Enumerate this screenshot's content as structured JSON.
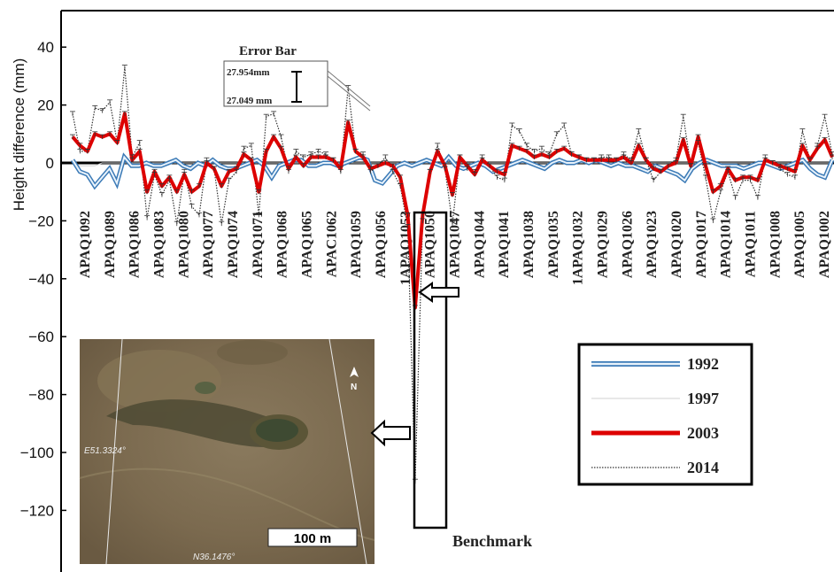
{
  "chart_data": {
    "type": "line",
    "ylabel": "Height difference (mm)",
    "xlabel": "",
    "ylim": [
      -130,
      46
    ],
    "yticks": [
      40,
      20,
      0,
      -20,
      -40,
      -60,
      -80,
      -100,
      -120
    ],
    "x_labels": [
      "APAQ1092",
      "APAQ1089",
      "APAQ1086",
      "APAQ1083",
      "APAQ1080",
      "APAQ1077",
      "APAQ1074",
      "APAQ1071",
      "APAQ1068",
      "APAQ1065",
      "APAC1062",
      "APAQ1059",
      "APAQ1056",
      "1APAQ1053",
      "APAQ1050",
      "APAQ1047",
      "APAQ1044",
      "APAQ1041",
      "APAQ1038",
      "APAQ1035",
      "1APAQ1032",
      "APAQ1029",
      "APAQ1026",
      "APAQ1023",
      "APAQ1020",
      "APAQ1017",
      "APAQ1014",
      "APAQ1011",
      "APAQ1008",
      "APAQ1005",
      "APAQ1002"
    ],
    "series": [
      {
        "name": "1992",
        "color": "#3b7ab6",
        "style": "double",
        "values": [
          1,
          -3,
          -4,
          -8,
          -5,
          -2,
          -7,
          2,
          -1,
          -1,
          0,
          -1,
          -1,
          0,
          1,
          -1,
          -2,
          0,
          -1,
          1,
          -1,
          -2,
          -2,
          -1,
          0,
          1,
          -1,
          -5,
          -1,
          0,
          1,
          1,
          -1,
          -1,
          0,
          0,
          -1,
          0,
          1,
          2,
          1,
          -6,
          -7,
          -4,
          -1,
          0,
          -1,
          0,
          1,
          0,
          -1,
          2,
          -1,
          -2,
          -1,
          0,
          -1,
          -3,
          -2,
          -1,
          0,
          1,
          0,
          -1,
          -2,
          0,
          1,
          0,
          0,
          1,
          0,
          1,
          0,
          -1,
          0,
          -1,
          -1,
          -2,
          -3,
          -1,
          -2,
          -3,
          -4,
          -6,
          -2,
          0,
          1,
          0,
          -1,
          -1,
          -1,
          -2,
          -1,
          0,
          0,
          -1,
          -2,
          -1,
          0,
          1,
          -2,
          -4,
          -5,
          1
        ]
      },
      {
        "name": "1997",
        "color": "#d0d0d0",
        "style": "thin",
        "values": [
          0,
          -1,
          -1,
          -1,
          0,
          0,
          0,
          0,
          0,
          0,
          0,
          0,
          0,
          0,
          0,
          0,
          0,
          0,
          0,
          0,
          0,
          0,
          0,
          0,
          0,
          0,
          0,
          0,
          0,
          0,
          0,
          0,
          0,
          0,
          0,
          0,
          0,
          0,
          0,
          0,
          0,
          0,
          0,
          0,
          0,
          0,
          0,
          0,
          0,
          0,
          0,
          0,
          0,
          0,
          0,
          0,
          0,
          0,
          0,
          0,
          0,
          0,
          0,
          0,
          0,
          0,
          0,
          0,
          0,
          0,
          0,
          0,
          0,
          0,
          0,
          0,
          0,
          0,
          0,
          0,
          0,
          0,
          0,
          0,
          0,
          0,
          0,
          0,
          0,
          0,
          0,
          0,
          0,
          0,
          0,
          0,
          0,
          0,
          0,
          0,
          0,
          0,
          0,
          0
        ]
      },
      {
        "name": "2003",
        "color": "#dd0000",
        "style": "thick",
        "values": [
          9,
          6,
          4,
          10,
          9,
          10,
          7,
          17,
          1,
          4,
          -10,
          -3,
          -8,
          -5,
          -10,
          -4,
          -10,
          -8,
          0,
          -2,
          -8,
          -3,
          -2,
          3,
          1,
          -10,
          4,
          9,
          5,
          -2,
          2,
          -1,
          2,
          2,
          2,
          1,
          -2,
          14,
          4,
          2,
          -2,
          -1,
          0,
          -1,
          -5,
          -18,
          -50,
          -18,
          -3,
          4,
          -1,
          -11,
          2,
          -1,
          -4,
          1,
          -1,
          -3,
          -4,
          6,
          5,
          4,
          2,
          3,
          2,
          4,
          5,
          3,
          2,
          1,
          1,
          1,
          1,
          1,
          2,
          0,
          6,
          1,
          -2,
          -3,
          -1,
          0,
          8,
          -1,
          9,
          -1,
          -10,
          -8,
          -2,
          -6,
          -5,
          -5,
          -6,
          1,
          0,
          -1,
          -2,
          -3,
          6,
          1,
          5,
          8,
          2
        ]
      },
      {
        "name": "2014",
        "color": "#333333",
        "style": "dotted",
        "values": [
          17,
          4,
          4,
          19,
          18,
          21,
          7,
          33,
          2,
          7,
          -19,
          -4,
          -11,
          -6,
          -21,
          -3,
          -15,
          -18,
          1,
          -2,
          -21,
          -6,
          -3,
          5,
          6,
          -18,
          16,
          17,
          9,
          -3,
          4,
          2,
          3,
          4,
          3,
          1,
          -3,
          26,
          4,
          3,
          -3,
          -1,
          2,
          -3,
          -8,
          -22,
          -110,
          -20,
          -3,
          6,
          -2,
          -21,
          2,
          -2,
          -3,
          2,
          -1,
          -5,
          -6,
          13,
          11,
          6,
          4,
          5,
          3,
          10,
          13,
          3,
          2,
          1,
          1,
          2,
          2,
          1,
          3,
          1,
          11,
          1,
          -6,
          -3,
          -1,
          1,
          16,
          -1,
          7,
          -5,
          -20,
          -10,
          -3,
          -12,
          -6,
          -6,
          -12,
          2,
          0,
          -2,
          -4,
          -5,
          11,
          1,
          6,
          16,
          3
        ]
      }
    ],
    "legend": {
      "placement": "center-right"
    },
    "error_bar_note": {
      "title": "Error Bar",
      "upper": "27.954mm",
      "lower": "27.049 mm"
    },
    "benchmark_label": "Benchmark"
  },
  "map_inset": {
    "scale_label": "100 m",
    "coord_west": "E51.3324°",
    "coord_south": "N36.1476°",
    "north_label": "N"
  }
}
